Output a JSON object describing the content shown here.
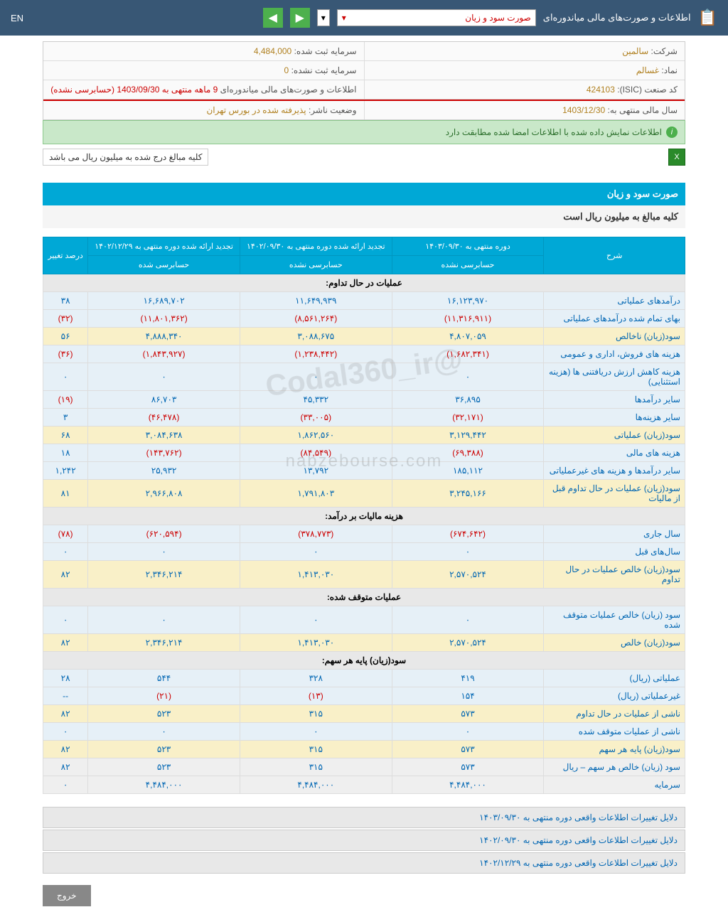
{
  "topbar": {
    "title": "اطلاعات و صورت‌های مالی میاندوره‌ای",
    "dropdown_value": "صورت سود و زیان",
    "lang": "EN"
  },
  "info": {
    "company_label": "شرکت:",
    "company": "سالمین",
    "capital_reg_label": "سرمایه ثبت شده:",
    "capital_reg": "4,484,000",
    "symbol_label": "نماد:",
    "symbol": "غسالم",
    "capital_unreg_label": "سرمایه ثبت نشده:",
    "capital_unreg": "0",
    "isic_label": "کد صنعت (ISIC):",
    "isic": "424103",
    "report_label": "اطلاعات و صورت‌های مالی میاندوره‌ای",
    "report_val": "9 ماهه منتهی به 1403/09/30 (حسابرسی نشده)",
    "year_label": "سال مالی منتهی به:",
    "year": "1403/12/30",
    "status_label": "وضعیت ناشر:",
    "status": "پذیرفته شده در بورس تهران"
  },
  "green_msg": "اطلاعات نمایش داده شده با اطلاعات امضا شده مطابقت دارد",
  "note": "کلیه مبالغ درج شده به میلیون ریال می باشد",
  "section_title": "صورت سود و زیان",
  "subtitle": "کلیه مبالغ به میلیون ریال است",
  "headers": {
    "desc": "شرح",
    "p1": "دوره منتهی به ۱۴۰۳/۰۹/۳۰",
    "p1s": "حسابرسی نشده",
    "p2": "تجدید ارائه شده دوره منتهی به ۱۴۰۲/۰۹/۳۰",
    "p2s": "حسابرسی نشده",
    "p3": "تجدید ارائه شده دوره منتهی به ۱۴۰۲/۱۲/۲۹",
    "p3s": "حسابرسی شده",
    "pct": "درصد تغییر"
  },
  "sections": [
    {
      "header": "عملیات در حال تداوم:"
    },
    {
      "cls": "r-blue",
      "desc": "درآمدهای عملیاتی",
      "v1": "۱۶,۱۲۳,۹۷۰",
      "v2": "۱۱,۶۴۹,۹۳۹",
      "v3": "۱۶,۶۸۹,۷۰۲",
      "pct": "۳۸"
    },
    {
      "cls": "r-blue",
      "desc": "بهای تمام شده درآمدهای عملیاتی",
      "v1": "(۱۱,۳۱۶,۹۱۱)",
      "n1": 1,
      "v2": "(۸,۵۶۱,۲۶۴)",
      "n2": 1,
      "v3": "(۱۱,۸۰۱,۳۶۲)",
      "n3": 1,
      "pct": "(۳۲)",
      "np": 1
    },
    {
      "cls": "r-yellow",
      "desc": "سود(زیان) ناخالص",
      "v1": "۴,۸۰۷,۰۵۹",
      "v2": "۳,۰۸۸,۶۷۵",
      "v3": "۴,۸۸۸,۳۴۰",
      "pct": "۵۶"
    },
    {
      "cls": "r-blue",
      "desc": "هزینه های فروش، اداری و عمومی",
      "v1": "(۱,۶۸۲,۳۴۱)",
      "n1": 1,
      "v2": "(۱,۲۳۸,۴۴۲)",
      "n2": 1,
      "v3": "(۱,۸۴۳,۹۲۷)",
      "n3": 1,
      "pct": "(۳۶)",
      "np": 1
    },
    {
      "cls": "r-blue",
      "desc": "هزینه کاهش ارزش دریافتنی ها (هزینه استثنایی)",
      "v1": "۰",
      "v2": "۰",
      "v3": "۰",
      "pct": "۰",
      "pp": 1
    },
    {
      "cls": "r-blue",
      "desc": "سایر درآمدها",
      "v1": "۳۶,۸۹۵",
      "v2": "۴۵,۳۳۲",
      "v3": "۸۶,۷۰۳",
      "pct": "(۱۹)",
      "np": 1
    },
    {
      "cls": "r-blue",
      "desc": "سایر هزینه‌ها",
      "v1": "(۳۲,۱۷۱)",
      "n1": 1,
      "v2": "(۳۳,۰۰۵)",
      "n2": 1,
      "v3": "(۴۶,۴۷۸)",
      "n3": 1,
      "pct": "۳",
      "pp": 1
    },
    {
      "cls": "r-yellow",
      "desc": "سود(زیان) عملیاتی",
      "v1": "۳,۱۲۹,۴۴۲",
      "v2": "۱,۸۶۲,۵۶۰",
      "v3": "۳,۰۸۴,۶۳۸",
      "pct": "۶۸"
    },
    {
      "cls": "r-blue",
      "desc": "هزینه های مالی",
      "v1": "(۶۹,۳۸۸)",
      "n1": 1,
      "v2": "(۸۴,۵۴۹)",
      "n2": 1,
      "v3": "(۱۴۳,۷۶۲)",
      "n3": 1,
      "pct": "۱۸",
      "pp": 1
    },
    {
      "cls": "r-blue",
      "desc": "سایر درآمدها و هزینه های غیرعملیاتی",
      "v1": "۱۸۵,۱۱۲",
      "v2": "۱۳,۷۹۲",
      "v3": "۲۵,۹۳۲",
      "pct": "۱,۲۴۲"
    },
    {
      "cls": "r-yellow",
      "desc": "سود(زیان) عملیات در حال تداوم قبل از مالیات",
      "v1": "۳,۲۴۵,۱۶۶",
      "v2": "۱,۷۹۱,۸۰۳",
      "v3": "۲,۹۶۶,۸۰۸",
      "pct": "۸۱"
    },
    {
      "header": "هزینه مالیات بر درآمد:"
    },
    {
      "cls": "r-blue",
      "desc": "سال جاری",
      "v1": "(۶۷۴,۶۴۲)",
      "n1": 1,
      "v2": "(۳۷۸,۷۷۳)",
      "n2": 1,
      "v3": "(۶۲۰,۵۹۴)",
      "n3": 1,
      "pct": "(۷۸)",
      "np": 1
    },
    {
      "cls": "r-blue",
      "desc": "سال‌های قبل",
      "v1": "۰",
      "v2": "۰",
      "v3": "۰",
      "pct": "۰",
      "pp": 1
    },
    {
      "cls": "r-yellow",
      "desc": "سود(زیان) خالص عملیات در حال تداوم",
      "v1": "۲,۵۷۰,۵۲۴",
      "v2": "۱,۴۱۳,۰۳۰",
      "v3": "۲,۳۴۶,۲۱۴",
      "pct": "۸۲"
    },
    {
      "header": "عملیات متوقف شده:"
    },
    {
      "cls": "r-blue",
      "desc": "سود (زیان) خالص عملیات متوقف شده",
      "v1": "۰",
      "v2": "۰",
      "v3": "۰",
      "pct": "۰",
      "pp": 1
    },
    {
      "cls": "r-yellow",
      "desc": "سود(زیان) خالص",
      "v1": "۲,۵۷۰,۵۲۴",
      "v2": "۱,۴۱۳,۰۳۰",
      "v3": "۲,۳۴۶,۲۱۴",
      "pct": "۸۲"
    },
    {
      "header": "سود(زیان) پایه هر سهم:"
    },
    {
      "cls": "r-blue",
      "desc": "عملیاتی (ریال)",
      "v1": "۴۱۹",
      "v2": "۳۲۸",
      "v3": "۵۴۴",
      "pct": "۲۸"
    },
    {
      "cls": "r-blue",
      "desc": "غیرعملیاتی (ریال)",
      "v1": "۱۵۴",
      "v2": "(۱۳)",
      "n2": 1,
      "v3": "(۲۱)",
      "n3": 1,
      "pct": "--"
    },
    {
      "cls": "r-yellow",
      "desc": "ناشی از عملیات در حال تداوم",
      "v1": "۵۷۳",
      "v2": "۳۱۵",
      "v3": "۵۲۳",
      "pct": "۸۲"
    },
    {
      "cls": "r-blue",
      "desc": "ناشی از عملیات متوقف شده",
      "v1": "۰",
      "v2": "۰",
      "v3": "۰",
      "pct": "۰",
      "pp": 1
    },
    {
      "cls": "r-yellow",
      "desc": "سود(زیان) پایه هر سهم",
      "v1": "۵۷۳",
      "v2": "۳۱۵",
      "v3": "۵۲۳",
      "pct": "۸۲"
    },
    {
      "cls": "r-gray",
      "desc": "سود (زیان) خالص هر سهم – ریال",
      "v1": "۵۷۳",
      "v2": "۳۱۵",
      "v3": "۵۲۳",
      "pct": "۸۲"
    },
    {
      "cls": "r-gray",
      "desc": "سرمایه",
      "v1": "۴,۴۸۴,۰۰۰",
      "v2": "۴,۴۸۴,۰۰۰",
      "v3": "۴,۴۸۴,۰۰۰",
      "pct": "۰",
      "pp": 1
    }
  ],
  "reasons": [
    "دلایل تغییرات اطلاعات واقعی دوره منتهی به ۱۴۰۳/۰۹/۳۰",
    "دلایل تغییرات اطلاعات واقعی دوره منتهی به ۱۴۰۲/۰۹/۳۰",
    "دلایل تغییرات اطلاعات واقعی دوره منتهی به ۱۴۰۲/۱۲/۲۹"
  ],
  "exit": "خروج",
  "watermark1": "@Codal360_ir",
  "watermark2": "nabzebourse.com"
}
